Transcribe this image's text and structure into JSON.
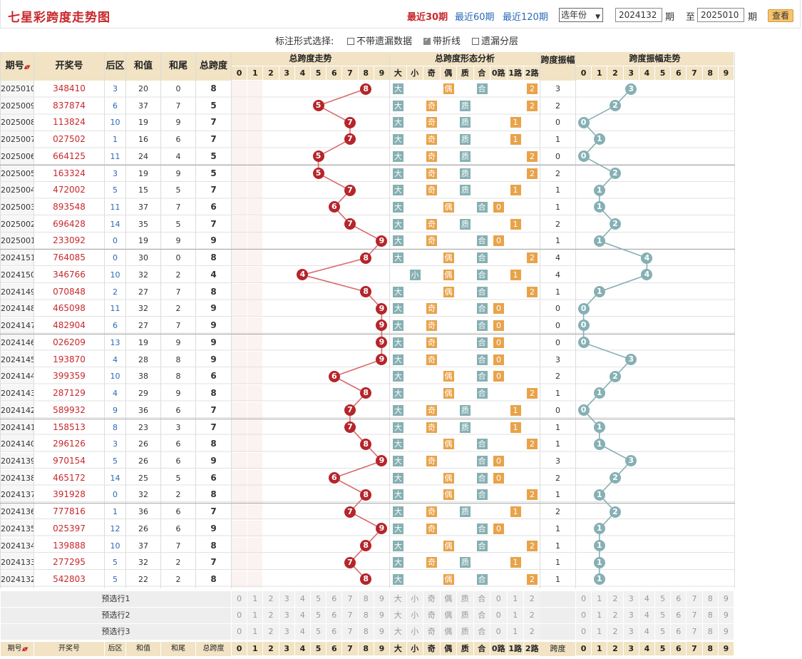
{
  "header": {
    "title": "七星彩跨度走势图",
    "nav": [
      "最近30期",
      "最近60期",
      "最近120期"
    ],
    "year_select": "选年份",
    "from_value": "2024132",
    "from_unit": "期",
    "to_label": "至",
    "to_value": "2025010",
    "to_unit": "期",
    "query_button": "查看"
  },
  "marks": {
    "label": "标注形式选择:",
    "options": [
      {
        "label": "不带遗漏数据",
        "checked": false
      },
      {
        "label": "带折线",
        "checked": true
      },
      {
        "label": "遗漏分层",
        "checked": false
      }
    ]
  },
  "colors": {
    "header_bg": "#f1e3c4",
    "red": "#c8282c",
    "teal": "#86b0b3",
    "orange": "#e8a34a",
    "blue": "#2a6ab8"
  },
  "table": {
    "group_headers": {
      "span_trend": "总跨度走势",
      "span_form": "总跨度形态分析",
      "amp": "跨度振幅",
      "amp_trend": "跨度振幅走势"
    },
    "col_headers": {
      "period": "期号",
      "sort_icon": "▲▼",
      "draw": "开奖号",
      "back": "后区",
      "sum": "和值",
      "tail": "和尾",
      "span": "总跨度",
      "amp": "跨度振幅",
      "amp_short": "跨度"
    },
    "digits": [
      "0",
      "1",
      "2",
      "3",
      "4",
      "5",
      "6",
      "7",
      "8",
      "9"
    ],
    "form_labels": [
      "大",
      "小",
      "奇",
      "偶",
      "质",
      "合",
      "0路",
      "1路",
      "2路"
    ],
    "rows": [
      {
        "p": "2025010",
        "d": "348410",
        "b": "3",
        "s": "20",
        "t": "0",
        "k": "8",
        "big": 1,
        "odd": 0,
        "prime": 0,
        "r": 2,
        "a": "3",
        "sm": [
          "11",
          "7",
          "2"
        ],
        "sq": [
          "1",
          "1",
          "1"
        ],
        "rm": [
          "7",
          "2"
        ],
        "am": [
          "2",
          "6",
          "1"
        ],
        "ar": [
          "10",
          "100",
          "66",
          "100",
          "100",
          "100"
        ]
      },
      {
        "p": "2025009",
        "d": "837874",
        "b": "6",
        "s": "37",
        "t": "7",
        "k": "5",
        "big": 1,
        "odd": 1,
        "prime": 1,
        "r": 2,
        "a": "2",
        "sm": [
          "10",
          "6",
          "1"
        ],
        "sq": [
          "10",
          "6",
          "6"
        ],
        "rm": [
          "6",
          "1"
        ],
        "am": [
          "1",
          "5"
        ],
        "ar": [
          "15",
          "9",
          "100",
          "65",
          "100",
          "100"
        ]
      },
      {
        "p": "2025008",
        "d": "113824",
        "b": "10",
        "s": "19",
        "t": "9",
        "k": "7",
        "big": 1,
        "odd": 1,
        "prime": 1,
        "r": 1,
        "a": "0",
        "sm": [
          "9",
          "5",
          "4"
        ],
        "sq": [
          "9",
          "5",
          "5"
        ],
        "rm": [
          "5",
          "5"
        ],
        "am": [
          "4",
          "1"
        ],
        "ar": [
          "14",
          "8",
          "100",
          "64",
          "100",
          "100"
        ]
      },
      {
        "p": "2025007",
        "d": "027502",
        "b": "1",
        "s": "16",
        "t": "6",
        "k": "7",
        "big": 1,
        "odd": 1,
        "prime": 1,
        "r": 1,
        "a": "1",
        "sm": [
          "8",
          "4",
          "4"
        ],
        "sq": [
          "8",
          "4",
          "4"
        ],
        "rm": [
          "4",
          "1"
        ],
        "am": [
          "1",
          "3"
        ],
        "ar": [
          "13",
          "7",
          "100",
          "63",
          "100",
          "100"
        ]
      },
      {
        "p": "2025006",
        "d": "664125",
        "b": "11",
        "s": "24",
        "t": "4",
        "k": "5",
        "big": 1,
        "odd": 1,
        "prime": 1,
        "r": 2,
        "a": "0",
        "sm": [
          "7",
          "3",
          "3"
        ],
        "sq": [
          "7",
          "3",
          "3"
        ],
        "rm": [
          "3",
          "2"
        ],
        "am": [
          "1",
          "2"
        ],
        "ar": [
          "12",
          "6",
          "100",
          "62",
          "100",
          "100"
        ]
      },
      {
        "p": "2025005",
        "d": "163324",
        "b": "3",
        "s": "19",
        "t": "9",
        "k": "5",
        "big": 1,
        "odd": 1,
        "prime": 1,
        "r": 2,
        "a": "2",
        "sm": [
          "6",
          "2",
          "2"
        ],
        "sq": [
          "6",
          "2",
          "2"
        ],
        "rm": [
          "2",
          "1"
        ],
        "am": [
          "8",
          "1"
        ],
        "ar": [
          "11",
          "5",
          "100",
          "61",
          "100",
          "100"
        ]
      },
      {
        "p": "2025004",
        "d": "472002",
        "b": "5",
        "s": "15",
        "t": "5",
        "k": "7",
        "big": 1,
        "odd": 1,
        "prime": 1,
        "r": 1,
        "a": "1",
        "sm": [
          "5",
          "1",
          "1"
        ],
        "sq": [
          "5",
          "1",
          "1"
        ],
        "rm": [
          "1",
          "4"
        ],
        "am": [
          "7",
          "2"
        ],
        "ar": [
          "10",
          "4",
          "100",
          "60",
          "100",
          "100"
        ]
      },
      {
        "p": "2025003",
        "d": "893548",
        "b": "11",
        "s": "37",
        "t": "7",
        "k": "6",
        "big": 1,
        "odd": 0,
        "prime": 0,
        "r": 0,
        "a": "1",
        "sm": [
          "4",
          "1",
          "1"
        ],
        "sq": [
          "4",
          "1",
          "1"
        ],
        "rm": [
          "1",
          "3"
        ],
        "am": [
          "6",
          "1"
        ],
        "ar": [
          "9",
          "3",
          "100",
          "59",
          "100",
          "100"
        ]
      },
      {
        "p": "2025002",
        "d": "696428",
        "b": "14",
        "s": "35",
        "t": "5",
        "k": "7",
        "big": 1,
        "odd": 1,
        "prime": 1,
        "r": 1,
        "a": "2",
        "sm": [
          "3",
          "2",
          "2"
        ],
        "sq": [
          "3",
          "2",
          "2"
        ],
        "rm": [
          "1",
          "2"
        ],
        "am": [
          "5",
          "1"
        ],
        "ar": [
          "8",
          "2",
          "100",
          "58",
          "100",
          "100"
        ]
      },
      {
        "p": "2025001",
        "d": "233092",
        "b": "0",
        "s": "19",
        "t": "9",
        "k": "9",
        "big": 1,
        "odd": 1,
        "prime": 0,
        "r": 0,
        "a": "1",
        "sm": [
          "2",
          "1",
          "1"
        ],
        "sq": [
          "2",
          "1",
          "10"
        ],
        "rm": [
          "2",
          "1"
        ],
        "am": [
          "4",
          "1"
        ],
        "ar": [
          "8",
          "7",
          "1",
          "100",
          "57",
          "100"
        ]
      },
      {
        "p": "2024151",
        "d": "764085",
        "b": "0",
        "s": "30",
        "t": "0",
        "k": "8",
        "big": 1,
        "odd": 0,
        "prime": 0,
        "r": 2,
        "a": "4",
        "sm": [
          "1",
          "3",
          "1"
        ],
        "sq": [
          "1",
          "9",
          "9"
        ],
        "rm": [
          "3",
          "1"
        ],
        "am": [
          "3",
          "2",
          "7",
          "6"
        ],
        "ar": [
          "100",
          "56",
          "99",
          "100",
          "100",
          "100"
        ]
      },
      {
        "p": "2024150",
        "d": "346766",
        "b": "10",
        "s": "32",
        "t": "2",
        "k": "4",
        "big": 0,
        "odd": 0,
        "prime": 0,
        "r": 1,
        "a": "4",
        "sm": [
          "1",
          "1",
          "2"
        ],
        "sq": [
          "1",
          "8",
          "8"
        ],
        "rm": [
          "2",
          "2"
        ],
        "am": [
          "2",
          "1",
          "6",
          "5"
        ],
        "ar": [
          "99",
          "55",
          "98",
          "100",
          "100",
          "100"
        ]
      },
      {
        "p": "2024149",
        "d": "070848",
        "b": "2",
        "s": "27",
        "t": "7",
        "k": "8",
        "big": 1,
        "odd": 0,
        "prime": 0,
        "r": 2,
        "a": "1",
        "sm": [
          "36",
          "1",
          "1"
        ],
        "sq": [
          "36",
          "7",
          "7"
        ],
        "rm": [
          "1",
          "7"
        ],
        "am": [
          "1"
        ],
        "ar": [
          "5",
          "4",
          "39",
          "98",
          "54",
          "97"
        ]
      },
      {
        "p": "2024148",
        "d": "465098",
        "b": "11",
        "s": "32",
        "t": "2",
        "k": "9",
        "big": 1,
        "odd": 1,
        "prime": 0,
        "r": 0,
        "a": "0",
        "sm": [
          "35",
          "4",
          "4"
        ],
        "sq": [
          "35",
          "6",
          "6"
        ],
        "rm": [
          "6",
          "5"
        ],
        "am": [],
        "ar": [
          "5",
          "4",
          "3",
          "38",
          "97",
          "53"
        ]
      },
      {
        "p": "2024147",
        "d": "482904",
        "b": "6",
        "s": "27",
        "t": "7",
        "k": "9",
        "big": 1,
        "odd": 1,
        "prime": 0,
        "r": 0,
        "a": "0",
        "sm": [
          "34",
          "3",
          "3"
        ],
        "sq": [
          "34",
          "5",
          "5"
        ],
        "rm": [
          "5",
          "4"
        ],
        "am": [],
        "ar": [
          "4",
          "3",
          "2",
          "37",
          "96",
          "52"
        ]
      },
      {
        "p": "2024146",
        "d": "026209",
        "b": "13",
        "s": "19",
        "t": "9",
        "k": "9",
        "big": 1,
        "odd": 1,
        "prime": 0,
        "r": 0,
        "a": "0",
        "sm": [
          "33",
          "2",
          "2"
        ],
        "sq": [
          "33",
          "4",
          "4"
        ],
        "rm": [
          "4",
          "3"
        ],
        "am": [],
        "ar": [
          "3",
          "2",
          "1",
          "36",
          "95",
          "51"
        ]
      },
      {
        "p": "2024145",
        "d": "193870",
        "b": "4",
        "s": "28",
        "t": "8",
        "k": "9",
        "big": 1,
        "odd": 1,
        "prime": 0,
        "r": 0,
        "a": "3",
        "sm": [
          "32",
          "1",
          "1"
        ],
        "sq": [
          "32",
          "3",
          "3"
        ],
        "rm": [
          "3",
          "2"
        ],
        "am": [
          "2",
          "1",
          "1"
        ],
        "ar": [
          "35",
          "94",
          "50",
          "93",
          "100",
          "100"
        ]
      },
      {
        "p": "2024144",
        "d": "399359",
        "b": "10",
        "s": "38",
        "t": "8",
        "k": "6",
        "big": 1,
        "odd": 0,
        "prime": 0,
        "r": 0,
        "a": "2",
        "sm": [
          "31",
          "2",
          "2"
        ],
        "sq": [
          "31",
          "2",
          "2"
        ],
        "rm": [
          "2",
          "1"
        ],
        "am": [
          "2",
          "1"
        ],
        "ar": [
          "5",
          "34",
          "93",
          "49",
          "92",
          "100"
        ]
      },
      {
        "p": "2024143",
        "d": "287129",
        "b": "4",
        "s": "29",
        "t": "9",
        "k": "8",
        "big": 1,
        "odd": 0,
        "prime": 0,
        "r": 2,
        "a": "1",
        "sm": [
          "30",
          "1",
          "1"
        ],
        "sq": [
          "30",
          "1",
          "1"
        ],
        "rm": [
          "4",
          "1"
        ],
        "am": [
          "1"
        ],
        "ar": [
          "5",
          "4",
          "33",
          "92",
          "48",
          "91"
        ]
      },
      {
        "p": "2024142",
        "d": "589932",
        "b": "9",
        "s": "36",
        "t": "6",
        "k": "7",
        "big": 1,
        "odd": 1,
        "prime": 1,
        "r": 1,
        "a": "0",
        "sm": [
          "29",
          "2",
          "2"
        ],
        "sq": [
          "29",
          "2",
          "2"
        ],
        "rm": [
          "3",
          "2"
        ],
        "am": [],
        "ar": [
          "1",
          "4",
          "3",
          "32",
          "91",
          "47"
        ]
      },
      {
        "p": "2024141",
        "d": "158513",
        "b": "8",
        "s": "23",
        "t": "3",
        "k": "7",
        "big": 1,
        "odd": 1,
        "prime": 1,
        "r": 1,
        "a": "1",
        "sm": [
          "28",
          "1",
          "1"
        ],
        "sq": [
          "28",
          "1",
          "1"
        ],
        "rm": [
          "2",
          "1"
        ],
        "am": [
          "15"
        ],
        "ar": [
          "3",
          "2",
          "31",
          "90",
          "46",
          "89"
        ]
      },
      {
        "p": "2024140",
        "d": "296126",
        "b": "3",
        "s": "26",
        "t": "6",
        "k": "8",
        "big": 1,
        "odd": 0,
        "prime": 0,
        "r": 2,
        "a": "1",
        "sm": [
          "27",
          "1",
          "1"
        ],
        "sq": [
          "27",
          "4",
          "4"
        ],
        "rm": [
          "1",
          "4"
        ],
        "am": [
          "14"
        ],
        "ar": [
          "2",
          "1",
          "30",
          "89",
          "45",
          "88"
        ]
      },
      {
        "p": "2024139",
        "d": "970154",
        "b": "5",
        "s": "26",
        "t": "6",
        "k": "9",
        "big": 1,
        "odd": 1,
        "prime": 0,
        "r": 0,
        "a": "3",
        "sm": [
          "26",
          "3",
          "3"
        ],
        "sq": [
          "26",
          "1",
          "3"
        ],
        "rm": [
          "3",
          "2"
        ],
        "am": [
          "13",
          "2",
          "1"
        ],
        "ar": [
          "29",
          "88",
          "44",
          "87",
          "100",
          "100"
        ]
      },
      {
        "p": "2024138",
        "d": "465172",
        "b": "14",
        "s": "25",
        "t": "5",
        "k": "6",
        "big": 1,
        "odd": 0,
        "prime": 0,
        "r": 0,
        "a": "2",
        "sm": [
          "25",
          "2",
          "2"
        ],
        "sq": [
          "25",
          "2",
          "2"
        ],
        "rm": [
          "2",
          "1"
        ],
        "am": [
          "12",
          "1"
        ],
        "ar": [
          "10",
          "28",
          "87",
          "43",
          "86",
          "100"
        ]
      },
      {
        "p": "2024137",
        "d": "391928",
        "b": "0",
        "s": "32",
        "t": "2",
        "k": "8",
        "big": 1,
        "odd": 0,
        "prime": 0,
        "r": 2,
        "a": "1",
        "sm": [
          "24",
          "1",
          "1"
        ],
        "sq": [
          "24",
          "1",
          "1"
        ],
        "rm": [
          "1",
          "1"
        ],
        "am": [
          "11"
        ],
        "ar": [
          "2",
          "9",
          "27",
          "86",
          "42",
          "85"
        ]
      },
      {
        "p": "2024136",
        "d": "777816",
        "b": "1",
        "s": "36",
        "t": "6",
        "k": "7",
        "big": 1,
        "odd": 1,
        "prime": 1,
        "r": 1,
        "a": "2",
        "sm": [
          "23",
          "2",
          "2"
        ],
        "sq": [
          "23",
          "1",
          "1"
        ],
        "rm": [
          "1",
          "1"
        ],
        "am": [
          "10",
          "1"
        ],
        "ar": [
          "8",
          "26",
          "85",
          "41",
          "84",
          "100"
        ]
      },
      {
        "p": "2024135",
        "d": "025397",
        "b": "12",
        "s": "26",
        "t": "6",
        "k": "9",
        "big": 1,
        "odd": 1,
        "prime": 0,
        "r": 0,
        "a": "1",
        "sm": [
          "22",
          "1",
          "1"
        ],
        "sq": [
          "22",
          "2",
          "2"
        ],
        "rm": [
          "2",
          "1"
        ],
        "am": [
          "9"
        ],
        "ar": [
          "6",
          "7",
          "25",
          "84",
          "40",
          "83"
        ]
      },
      {
        "p": "2024134",
        "d": "139888",
        "b": "10",
        "s": "37",
        "t": "7",
        "k": "8",
        "big": 1,
        "odd": 0,
        "prime": 0,
        "r": 2,
        "a": "1",
        "sm": [
          "21",
          "1",
          "1"
        ],
        "sq": [
          "21",
          "1",
          "1"
        ],
        "rm": [
          "6",
          "1"
        ],
        "am": [
          "8"
        ],
        "ar": [
          "5",
          "6",
          "24",
          "83",
          "39",
          "82"
        ]
      },
      {
        "p": "2024133",
        "d": "277295",
        "b": "5",
        "s": "32",
        "t": "2",
        "k": "7",
        "big": 1,
        "odd": 1,
        "prime": 1,
        "r": 1,
        "a": "1",
        "sm": [
          "20",
          "1",
          "1"
        ],
        "sq": [
          "20",
          "1",
          "1"
        ],
        "rm": [
          "5",
          "1"
        ],
        "am": [
          "7"
        ],
        "ar": [
          "4",
          "5",
          "23",
          "82",
          "38",
          "81"
        ]
      },
      {
        "p": "2024132",
        "d": "542803",
        "b": "5",
        "s": "22",
        "t": "2",
        "k": "8",
        "big": 1,
        "odd": 0,
        "prime": 0,
        "r": 2,
        "a": "1",
        "sm": [
          "19",
          "1",
          "1"
        ],
        "sq": [
          "19",
          "1",
          "1"
        ],
        "rm": [
          "4",
          "1"
        ],
        "am": [
          "6"
        ],
        "ar": [
          "3",
          "4",
          "22",
          "81",
          "37",
          "80"
        ]
      }
    ],
    "preselect": [
      "预选行1",
      "预选行2",
      "预选行3"
    ]
  }
}
